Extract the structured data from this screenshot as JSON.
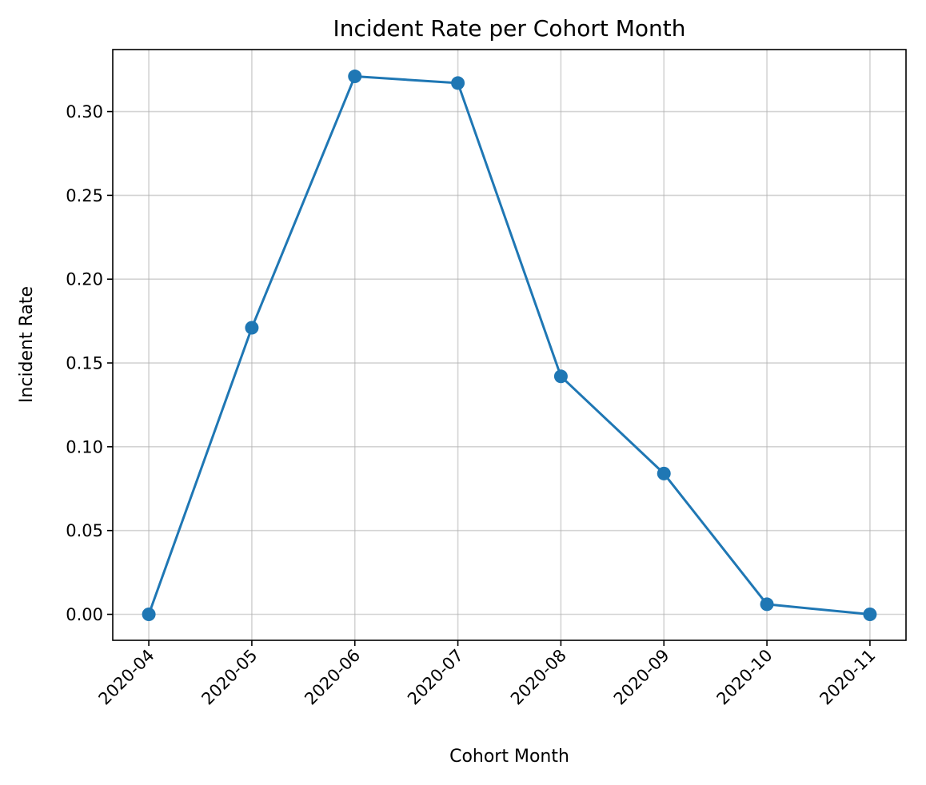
{
  "chart_data": {
    "type": "line",
    "title": "Incident Rate per Cohort Month",
    "xlabel": "Cohort Month",
    "ylabel": "Incident Rate",
    "categories": [
      "2020-04",
      "2020-05",
      "2020-06",
      "2020-07",
      "2020-08",
      "2020-09",
      "2020-10",
      "2020-11"
    ],
    "series": [
      {
        "values": [
          0.0,
          0.171,
          0.321,
          0.317,
          0.142,
          0.084,
          0.006,
          0.0
        ],
        "color": "#1f77b4",
        "marker": "circle"
      }
    ],
    "ylim": [
      -0.0155,
      0.337
    ],
    "yticks": [
      0.0,
      0.05,
      0.1,
      0.15,
      0.2,
      0.25,
      0.3
    ],
    "ytick_labels": [
      "0.00",
      "0.05",
      "0.10",
      "0.15",
      "0.20",
      "0.25",
      "0.30"
    ],
    "grid": true,
    "legend": "none",
    "xtick_rotation_deg": 45
  }
}
